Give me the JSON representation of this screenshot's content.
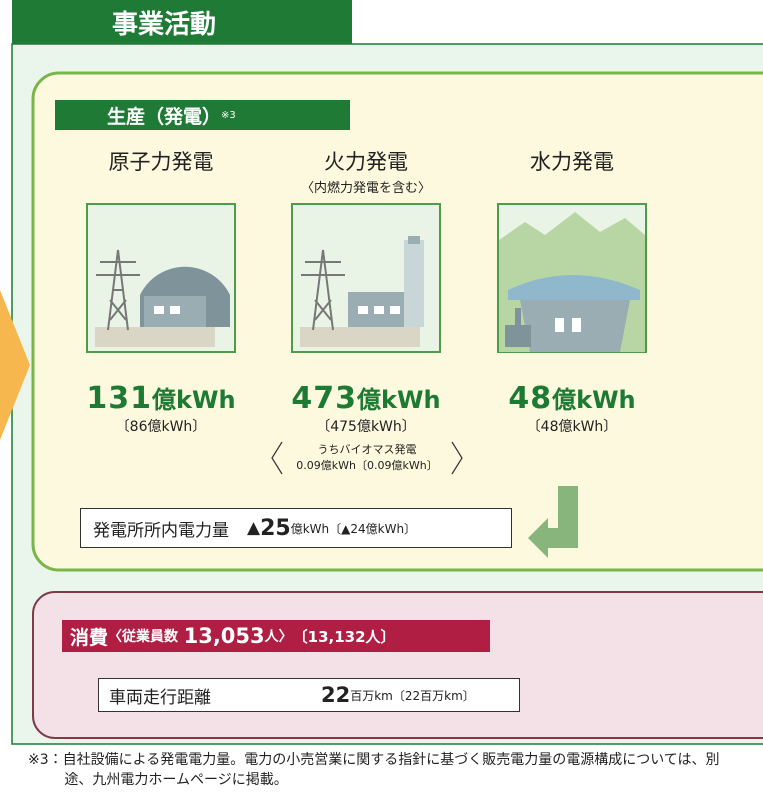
{
  "header": {
    "title": "事業活動"
  },
  "production": {
    "title": "生産（発電）",
    "note_ref": "※3",
    "plants": [
      {
        "name": "原子力発電",
        "value": 131,
        "unit": "億kWh",
        "previous": "〔86億kWh〕"
      },
      {
        "name": "火力発電",
        "subtitle": "〈内燃力発電を含む〉",
        "value": 473,
        "unit": "億kWh",
        "previous": "〔475億kWh〕",
        "biomass": {
          "label": "うちバイオマス発電",
          "value": "0.09億kWh〔0.09億kWh〕"
        }
      },
      {
        "name": "水力発電",
        "value": 48,
        "unit": "億kWh",
        "previous": "〔48億kWh〕"
      }
    ],
    "station_use": {
      "label": "発電所所内電力量",
      "marker": "▲",
      "value": 25,
      "unit": "億kWh",
      "previous": "〔▲24億kWh〕"
    }
  },
  "consumption": {
    "title": "消費",
    "employees_label": "〈従業員数",
    "employees": "13,053",
    "employees_unit": "人〉",
    "previous": "〔13,132人〕",
    "vehicle": {
      "label": "車両走行距離",
      "value": 22,
      "unit": "百万km",
      "previous": "〔22百万km〕"
    }
  },
  "footnote": "※3：自社設備による発電電力量。電力の小売営業に関する指針に基づく販売電力量の電源構成については、別途、九州電力ホームページに掲載。"
}
